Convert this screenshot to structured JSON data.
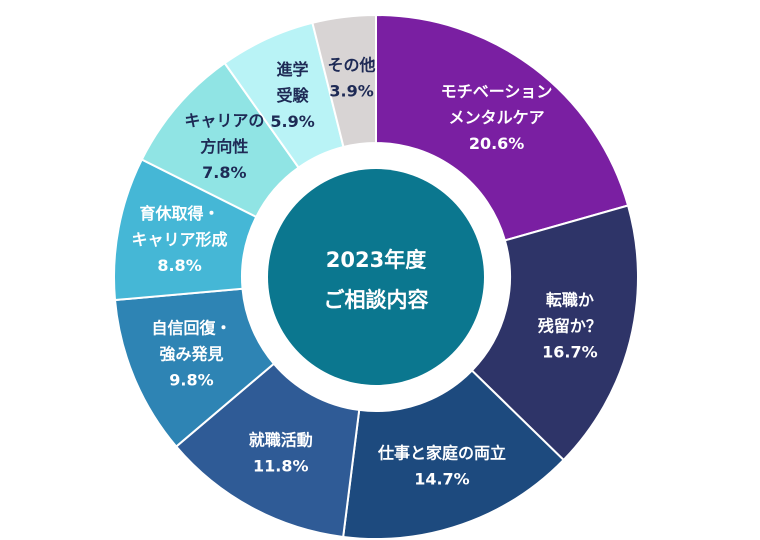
{
  "chart_data": {
    "type": "pie",
    "center_title": [
      "2023年度",
      "ご相談内容"
    ],
    "center_color": "#0b778f",
    "slices": [
      {
        "label": [
          "モチベーション",
          "メンタルケア"
        ],
        "value": 20.6,
        "value_label": "20.6%",
        "color": "#7a1fa2",
        "text_color": "#ffffff"
      },
      {
        "label": [
          "転職か",
          "残留か？"
        ],
        "value": 16.7,
        "value_label": "16.7%",
        "color": "#2e3468",
        "text_color": "#ffffff"
      },
      {
        "label": [
          "仕事と家庭の両立"
        ],
        "value": 14.7,
        "value_label": "14.7%",
        "color": "#1d4a7e",
        "text_color": "#ffffff"
      },
      {
        "label": [
          "就職活動"
        ],
        "value": 11.8,
        "value_label": "11.8%",
        "color": "#2f5b96",
        "text_color": "#ffffff"
      },
      {
        "label": [
          "自信回復・",
          "強み発見"
        ],
        "value": 9.8,
        "value_label": "9.8%",
        "color": "#2e84b4",
        "text_color": "#ffffff"
      },
      {
        "label": [
          "育休取得・",
          "キャリア形成"
        ],
        "value": 8.8,
        "value_label": "8.8%",
        "color": "#45b7d6",
        "text_color": "#ffffff"
      },
      {
        "label": [
          "キャリアの",
          "方向性"
        ],
        "value": 7.8,
        "value_label": "7.8%",
        "color": "#90e4e4",
        "text_color": "#1e2a55"
      },
      {
        "label": [
          "進学",
          "受験"
        ],
        "value": 5.9,
        "value_label": "5.9%",
        "color": "#b9f3f6",
        "text_color": "#1e2a55"
      },
      {
        "label": [
          "その他"
        ],
        "value": 3.9,
        "value_label": "3.9%",
        "color": "#d8d4d4",
        "text_color": "#1e2a55"
      }
    ]
  }
}
